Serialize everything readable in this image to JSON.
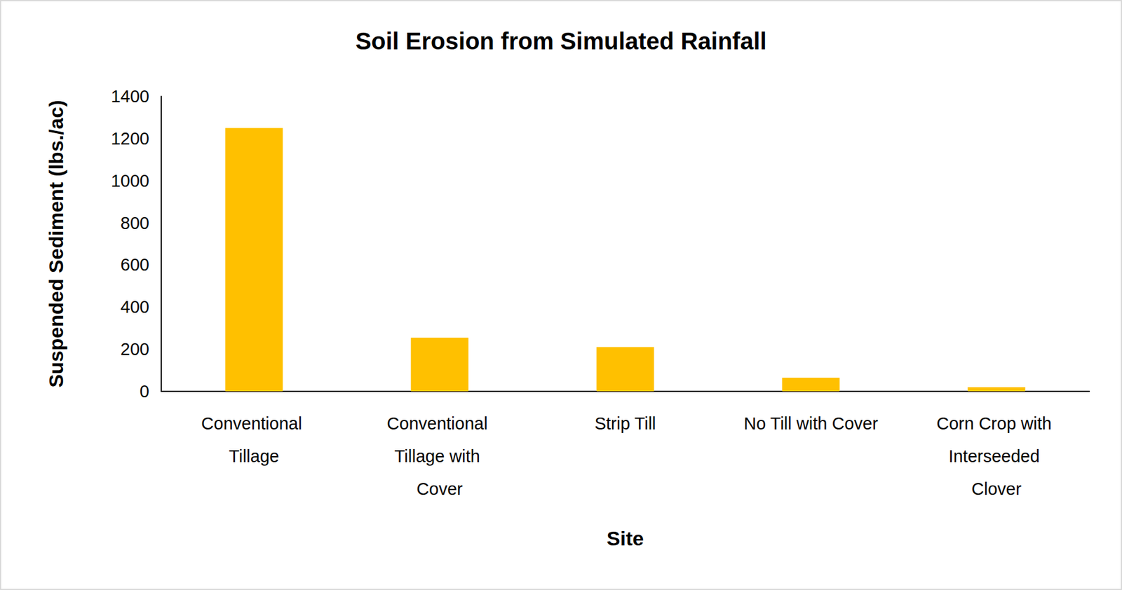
{
  "chart_data": {
    "type": "bar",
    "title": "Soil Erosion from Simulated Rainfall",
    "x_label": "Site",
    "y_label": "Suspended Sediment (lbs./ac)",
    "categories": [
      "Conventional Tillage",
      "Conventional Tillage with Cover",
      "Strip Till",
      "No Till with Cover",
      "Corn Crop with Interseeded Clover"
    ],
    "values": [
      1250,
      255,
      210,
      65,
      20
    ],
    "color": "#ffc000",
    "ylim": [
      0,
      1400
    ],
    "yticks": [
      0,
      200,
      400,
      600,
      800,
      1000,
      1200,
      1400
    ],
    "grid": false
  }
}
